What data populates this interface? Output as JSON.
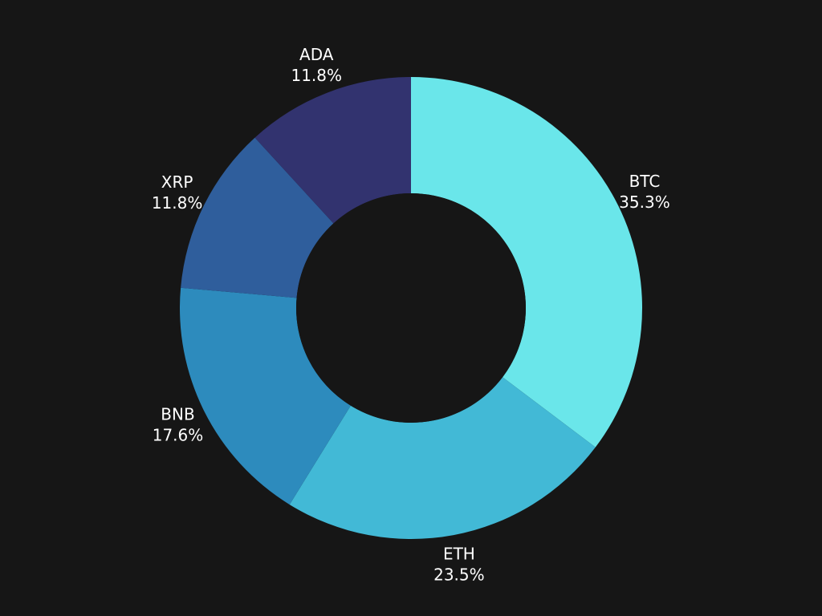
{
  "chart_data": {
    "type": "pie",
    "donut": true,
    "title": "",
    "background_color": "#161616",
    "hole_color": "#161616",
    "legend": "none",
    "slices": [
      {
        "label": "BTC",
        "value": 35.3,
        "value_label": "35.3%",
        "color": "#6ae6ea"
      },
      {
        "label": "ETH",
        "value": 23.5,
        "value_label": "23.5%",
        "color": "#42b9d6"
      },
      {
        "label": "BNB",
        "value": 17.6,
        "value_label": "17.6%",
        "color": "#2d8bbd"
      },
      {
        "label": "XRP",
        "value": 11.8,
        "value_label": "11.8%",
        "color": "#2f5e9c"
      },
      {
        "label": "ADA",
        "value": 11.8,
        "value_label": "11.8%",
        "color": "#32336f"
      }
    ]
  }
}
